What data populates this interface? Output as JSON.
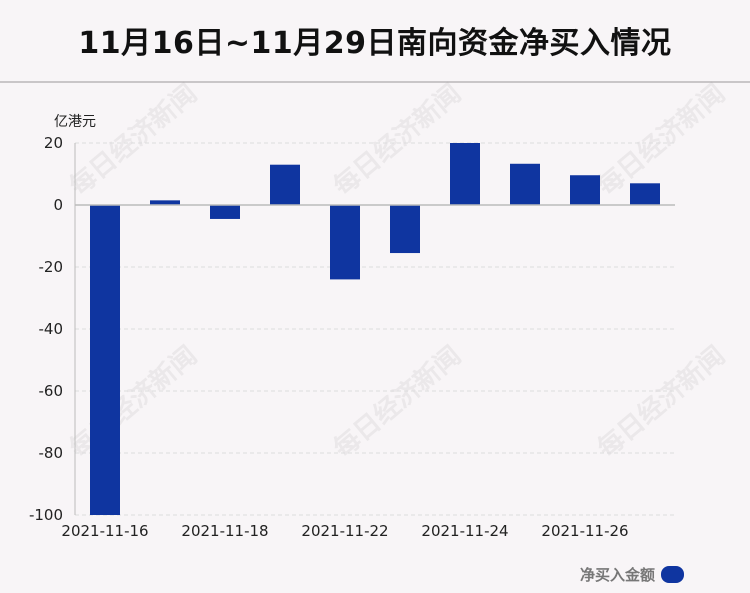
{
  "title": "11月16日~11月29日南向资金净买入情况",
  "watermark": "每日经济新闻",
  "colors": {
    "bar": "#0f35a0",
    "grid": "#dddddd",
    "axis": "#bbbbbb"
  },
  "chart_data": {
    "type": "bar",
    "title": "11月16日~11月29日南向资金净买入情况",
    "unit_label": "亿港元",
    "ylim": [
      -100,
      20
    ],
    "yticks": [
      20,
      0,
      -20,
      -40,
      -60,
      -80,
      -100
    ],
    "ytick_labels": [
      "20",
      "0",
      "-20",
      "-40",
      "-60",
      "-80",
      "-100"
    ],
    "xtick_labels": [
      "2021-11-16",
      "2021-11-18",
      "2021-11-22",
      "2021-11-24",
      "2021-11-26"
    ],
    "categories": [
      "2021-11-16",
      "2021-11-17",
      "2021-11-18",
      "2021-11-19",
      "2021-11-22",
      "2021-11-23",
      "2021-11-24",
      "2021-11-25",
      "2021-11-26",
      "2021-11-29"
    ],
    "series": [
      {
        "name": "净买入金额",
        "values": [
          -100.0,
          1.5,
          -4.5,
          13.0,
          -24.0,
          -15.5,
          20.0,
          13.3,
          9.6,
          7.0
        ]
      }
    ],
    "legend_position": "bottom-right",
    "grid": true
  }
}
